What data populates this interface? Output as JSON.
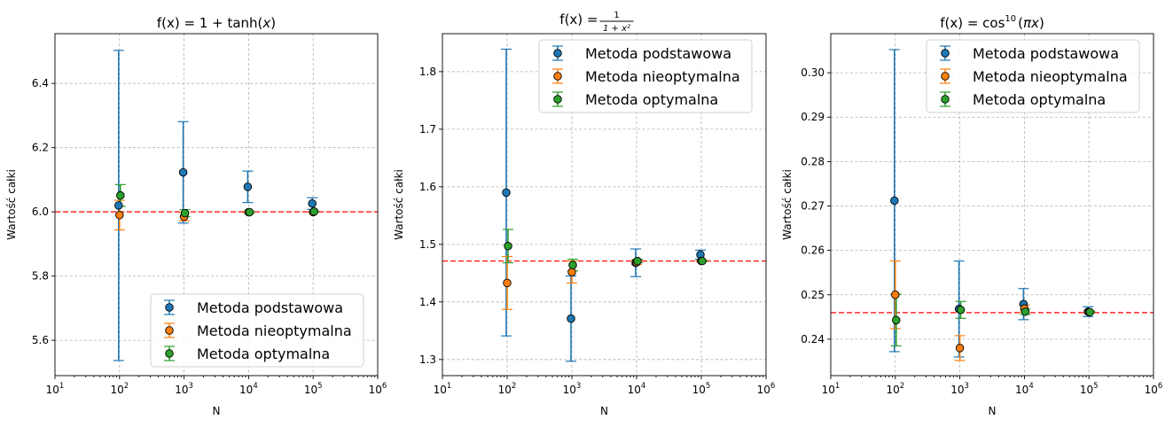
{
  "chart_data": [
    {
      "type": "scatter",
      "title_parts": [
        "f(x) = 1 + tanh(",
        "x",
        ")"
      ],
      "xlabel": "N",
      "ylabel": "Wartość całki",
      "xscale": "log",
      "xlim": [
        10,
        1000000
      ],
      "ylim": [
        5.49,
        6.555
      ],
      "yticks": [
        5.6,
        5.8,
        6.0,
        6.2,
        6.4
      ],
      "ytick_labels": [
        "5.6",
        "5.8",
        "6.0",
        "6.2",
        "6.4"
      ],
      "reference": 6.0,
      "legend_loc": "lower-right",
      "series": [
        {
          "name": "Metoda podstawowa",
          "color": "#1f77b4",
          "x": [
            100,
            1000,
            10000,
            100000
          ],
          "y": [
            6.02,
            6.123,
            6.078,
            6.026
          ],
          "err": [
            0.483,
            0.158,
            0.049,
            0.018
          ]
        },
        {
          "name": "Metoda nieoptymalna",
          "color": "#ff7f0e",
          "x": [
            100,
            1000,
            10000,
            100000
          ],
          "y": [
            5.99,
            5.985,
            5.999,
            5.999
          ],
          "err": [
            0.046,
            0.013,
            0.003,
            0.001
          ]
        },
        {
          "name": "Metoda optymalna",
          "color": "#2ca02c",
          "x": [
            100,
            1000,
            10000,
            100000
          ],
          "y": [
            6.051,
            5.996,
            5.999,
            6.001
          ],
          "err": [
            0.034,
            0.011,
            0.003,
            0.001
          ]
        }
      ]
    },
    {
      "type": "scatter",
      "title_parts": [
        "f(x) = ",
        "1",
        "1 + x²"
      ],
      "xlabel": "N",
      "ylabel": "Wartość całki",
      "xscale": "log",
      "xlim": [
        10,
        1000000
      ],
      "ylim": [
        1.272,
        1.866
      ],
      "yticks": [
        1.3,
        1.4,
        1.5,
        1.6,
        1.7,
        1.8
      ],
      "ytick_labels": [
        "1.3",
        "1.4",
        "1.5",
        "1.6",
        "1.7",
        "1.8"
      ],
      "reference": 1.471,
      "legend_loc": "upper-right",
      "series": [
        {
          "name": "Metoda podstawowa",
          "color": "#1f77b4",
          "x": [
            100,
            1000,
            10000,
            100000
          ],
          "y": [
            1.59,
            1.371,
            1.468,
            1.482
          ],
          "err": [
            0.249,
            0.074,
            0.024,
            0.008
          ]
        },
        {
          "name": "Metoda nieoptymalna",
          "color": "#ff7f0e",
          "x": [
            100,
            1000,
            10000,
            100000
          ],
          "y": [
            1.433,
            1.452,
            1.469,
            1.471
          ],
          "err": [
            0.046,
            0.019,
            0.004,
            0.001
          ]
        },
        {
          "name": "Metoda optymalna",
          "color": "#2ca02c",
          "x": [
            100,
            1000,
            10000,
            100000
          ],
          "y": [
            1.497,
            1.464,
            1.471,
            1.471
          ],
          "err": [
            0.029,
            0.01,
            0.003,
            0.001
          ]
        }
      ]
    },
    {
      "type": "scatter",
      "title_parts": [
        "f(x) = cos",
        "10",
        "(",
        "πx",
        ")"
      ],
      "xlabel": "N",
      "ylabel": "Wartość całki",
      "xscale": "log",
      "xlim": [
        10,
        1000000
      ],
      "ylim": [
        0.2318,
        0.3088
      ],
      "yticks": [
        0.24,
        0.25,
        0.26,
        0.27,
        0.28,
        0.29,
        0.3
      ],
      "ytick_labels": [
        "0.24",
        "0.25",
        "0.26",
        "0.27",
        "0.28",
        "0.29",
        "0.30"
      ],
      "reference": 0.246,
      "legend_loc": "upper-right",
      "series": [
        {
          "name": "Metoda podstawowa",
          "color": "#1f77b4",
          "x": [
            100,
            1000,
            10000,
            100000
          ],
          "y": [
            0.2712,
            0.2468,
            0.2479,
            0.2462
          ],
          "err": [
            0.034,
            0.0108,
            0.0035,
            0.0011
          ]
        },
        {
          "name": "Metoda nieoptymalna",
          "color": "#ff7f0e",
          "x": [
            100,
            1000,
            10000,
            100000
          ],
          "y": [
            0.25,
            0.238,
            0.2469,
            0.2461
          ],
          "err": [
            0.0076,
            0.0028,
            0.0008,
            0.0003
          ]
        },
        {
          "name": "Metoda optymalna",
          "color": "#2ca02c",
          "x": [
            100,
            1000,
            10000,
            100000
          ],
          "y": [
            0.2443,
            0.2466,
            0.2462,
            0.2461
          ],
          "err": [
            0.0058,
            0.0019,
            0.0006,
            0.0002
          ]
        }
      ]
    }
  ]
}
